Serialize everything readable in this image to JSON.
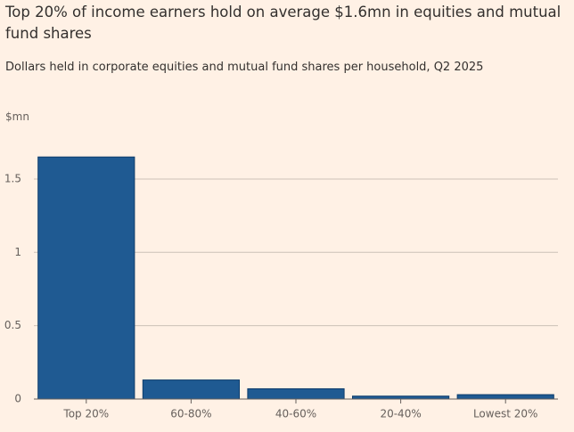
{
  "chart_data": {
    "type": "bar",
    "title": "Top 20% of income earners hold on average $1.6mn in equities and mutual fund shares",
    "subtitle": "Dollars held in corporate equities and mutual fund shares per household, Q2 2025",
    "y_label": "$mn",
    "categories": [
      "Top 20%",
      "60-80%",
      "40-60%",
      "20-40%",
      "Lowest 20%"
    ],
    "values": [
      1.65,
      0.13,
      0.07,
      0.02,
      0.03
    ],
    "color": "#1f5a92",
    "ylim": [
      0,
      1.7
    ],
    "yticks": [
      0,
      0.5,
      1,
      1.5
    ],
    "grid": true
  }
}
